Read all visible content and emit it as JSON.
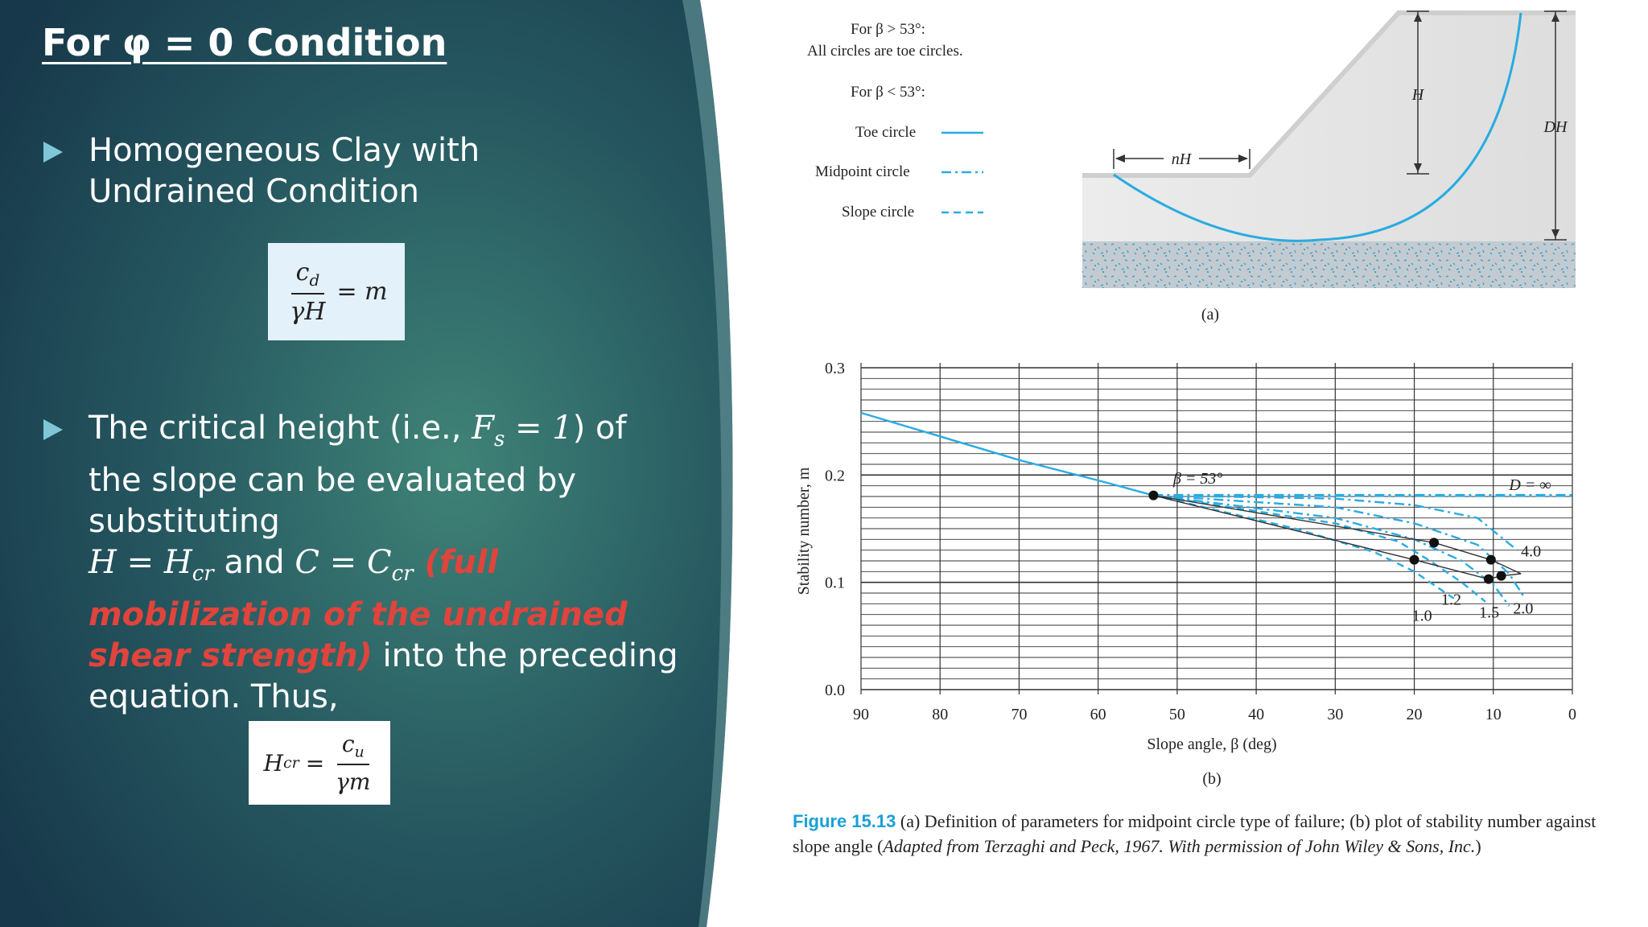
{
  "title": "For φ = 0  Condition",
  "bullets": [
    {
      "text": "Homogeneous Clay  with Undrained Condition"
    },
    {
      "seg1": "The critical height (i.e., ",
      "fs_var": "F",
      "fs_sub": "s",
      "fs_eq": " = 1",
      "seg2": ") of the slope can be evaluated by substituting",
      "h_var": "H",
      "h_eq": " = H",
      "h_sub": "cr",
      "and": " and ",
      "c_var": "C",
      "c_eq": " = C",
      "c_sub": "cr",
      "highlight": " (full mobilization of the undrained shear strength)",
      "seg3": " into the preceding equation. Thus,"
    }
  ],
  "equation1": {
    "num": "c",
    "num_sub": "d",
    "den": "γH",
    "rhs": "= m"
  },
  "equation2": {
    "lhs": "H",
    "lhs_sub": "cr",
    "eq": "=",
    "num": "c",
    "num_sub": "u",
    "den": "γm"
  },
  "figure": {
    "legend": {
      "beta_gt": "For β > 53°:",
      "all_toe": "All circles are toe circles.",
      "beta_lt": "For β < 53°:",
      "toe": "Toe circle",
      "midpoint": "Midpoint circle",
      "slope": "Slope circle"
    },
    "diagram_labels": {
      "nH": "nH",
      "H": "H",
      "DH": "DH",
      "part": "(a)"
    },
    "chart_part": "(b)",
    "caption_fig": "Figure 15.13",
    "caption_text": "  (a) Definition of parameters for midpoint circle type of failure; (b) plot of stability number against slope angle (",
    "caption_italic": "Adapted from Terzaghi and Peck, 1967. With permission of John Wiley & Sons, Inc.",
    "caption_end": ")"
  },
  "colors": {
    "accent": "#29abe2",
    "title_bg": "#1f4f5a",
    "highlight": "#e0443c",
    "bullet": "#7fc7d6"
  },
  "chart_data": {
    "type": "line",
    "xlabel": "Slope angle, β (deg)",
    "ylabel": "Stability number, m",
    "xlim": [
      90,
      0
    ],
    "ylim": [
      0.0,
      0.3
    ],
    "x_ticks": [
      90,
      80,
      70,
      60,
      50,
      40,
      30,
      20,
      10,
      0
    ],
    "y_ticks": [
      0.0,
      0.1,
      0.2,
      0.3
    ],
    "x_tick_labels": [
      "90",
      "80",
      "70",
      "60",
      "50",
      "40",
      "30",
      "20",
      "10",
      "0"
    ],
    "y_tick_labels": [
      "0.0",
      "0.1",
      "0.2",
      "0.3"
    ],
    "grid": true,
    "annotations": [
      "β = 53°",
      "D = ∞",
      "4.0",
      "2.0",
      "1.5",
      "1.2",
      "1.0"
    ],
    "series": [
      {
        "style": "toe",
        "points": [
          [
            90,
            0.258
          ],
          [
            80,
            0.236
          ],
          [
            70,
            0.214
          ],
          [
            60,
            0.195
          ],
          [
            53,
            0.181
          ]
        ]
      },
      {
        "style": "midpoint",
        "name": "D = ∞",
        "points": [
          [
            53,
            0.181
          ],
          [
            0,
            0.181
          ]
        ]
      },
      {
        "style": "midpoint",
        "name": "4.0",
        "points": [
          [
            53,
            0.181
          ],
          [
            30,
            0.178
          ],
          [
            20,
            0.172
          ],
          [
            12,
            0.16
          ],
          [
            7,
            0.13
          ]
        ]
      },
      {
        "style": "midpoint",
        "name": "2.0",
        "points": [
          [
            53,
            0.181
          ],
          [
            30,
            0.17
          ],
          [
            20,
            0.155
          ],
          [
            12,
            0.135
          ],
          [
            8,
            0.108
          ],
          [
            6,
            0.085
          ]
        ]
      },
      {
        "style": "midpoint",
        "name": "1.5",
        "points": [
          [
            53,
            0.181
          ],
          [
            30,
            0.16
          ],
          [
            20,
            0.14
          ],
          [
            14,
            0.12
          ],
          [
            10,
            0.098
          ],
          [
            8,
            0.078
          ]
        ]
      },
      {
        "style": "slope",
        "name": "1.2",
        "points": [
          [
            53,
            0.181
          ],
          [
            30,
            0.155
          ],
          [
            22,
            0.138
          ],
          [
            18,
            0.12
          ],
          [
            14,
            0.1
          ],
          [
            11,
            0.082
          ]
        ]
      },
      {
        "style": "slope",
        "name": "1.0",
        "points": [
          [
            53,
            0.181
          ],
          [
            35,
            0.15
          ],
          [
            25,
            0.128
          ],
          [
            20,
            0.11
          ],
          [
            17,
            0.095
          ],
          [
            15,
            0.085
          ]
        ]
      }
    ],
    "markers": [
      [
        53,
        0.181
      ],
      [
        17.5,
        0.137
      ],
      [
        20,
        0.121
      ],
      [
        10.3,
        0.121
      ],
      [
        10.6,
        0.103
      ],
      [
        9,
        0.106
      ]
    ],
    "tie_lines": [
      {
        "points": [
          [
            53,
            0.181
          ],
          [
            17.5,
            0.137
          ],
          [
            10.3,
            0.121
          ],
          [
            6.5,
            0.108
          ]
        ]
      },
      {
        "points": [
          [
            53,
            0.181
          ],
          [
            20,
            0.121
          ],
          [
            10.6,
            0.103
          ],
          [
            9,
            0.106
          ],
          [
            6.5,
            0.108
          ]
        ]
      }
    ]
  }
}
